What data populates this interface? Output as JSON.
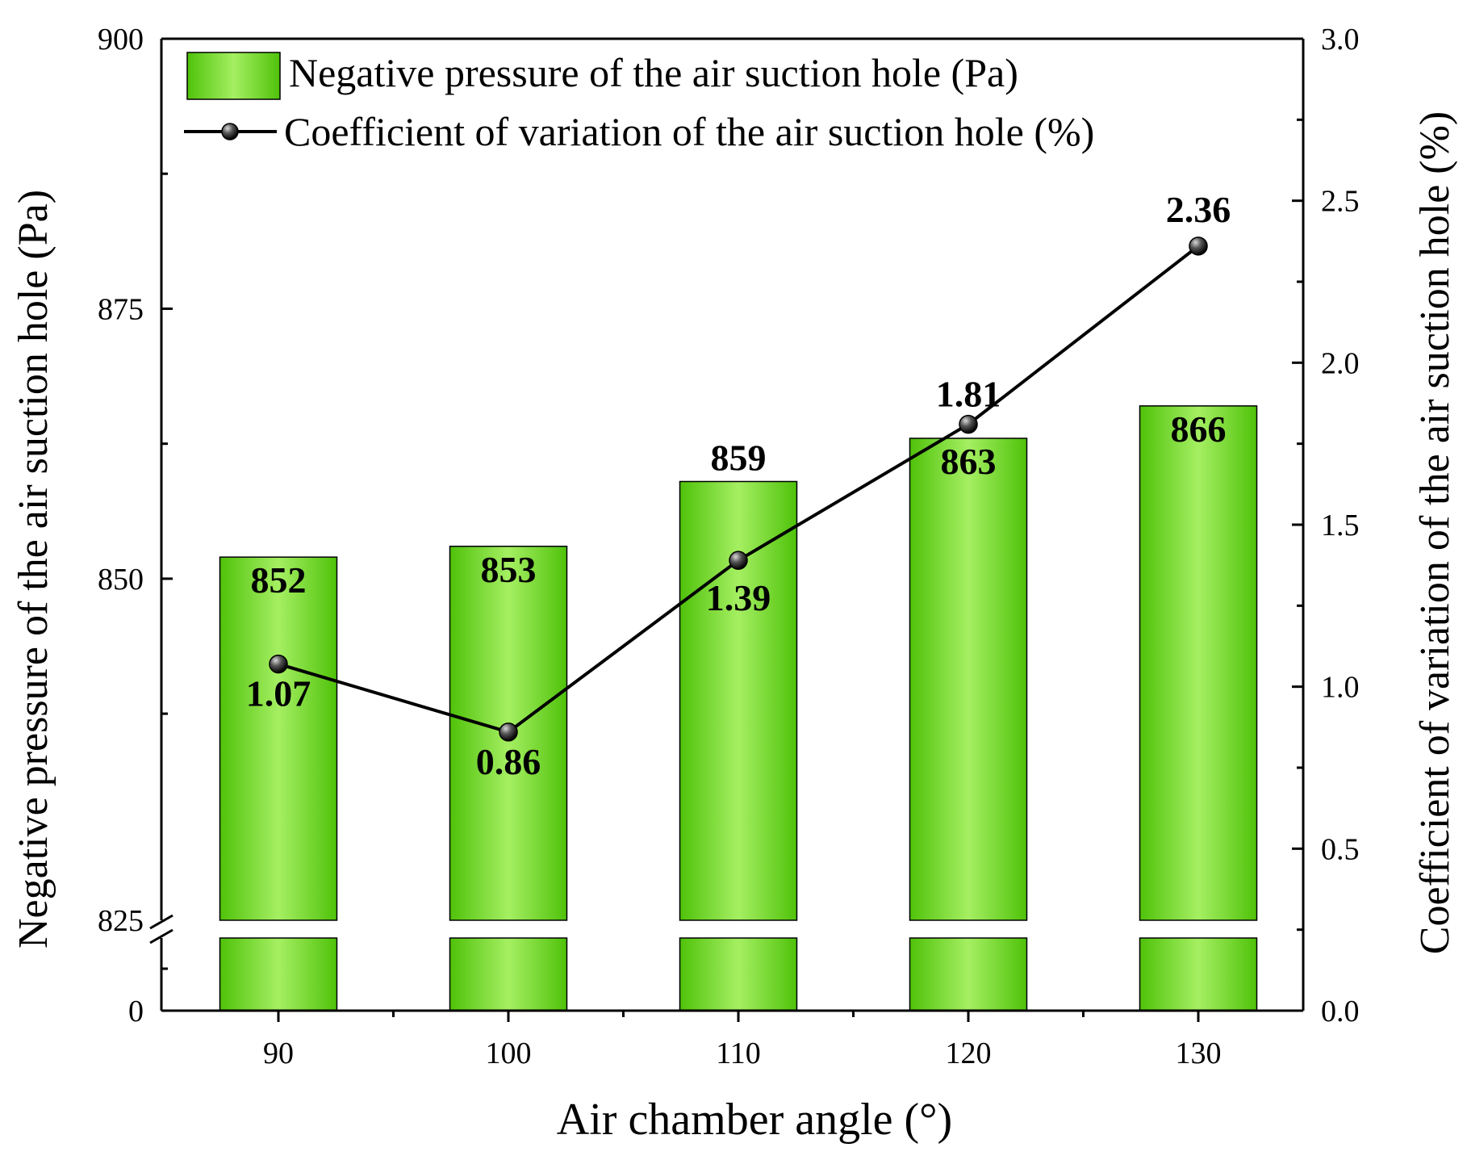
{
  "chart_data": {
    "type": "bar+line",
    "xlabel": "Air chamber angle (°)",
    "categories": [
      "90",
      "100",
      "110",
      "120",
      "130"
    ],
    "series": [
      {
        "name": "Negative pressure of the air suction hole (Pa)",
        "type": "bar",
        "axis": "left",
        "values": [
          852,
          853,
          859,
          863,
          866
        ],
        "labels": [
          "852",
          "853",
          "859",
          "863",
          "866"
        ],
        "color": "#5ccf14"
      },
      {
        "name": "Coefficient of variation of the air suction hole (%)",
        "type": "line",
        "axis": "right",
        "values": [
          1.07,
          0.86,
          1.39,
          1.81,
          2.36
        ],
        "labels": [
          "1.07",
          "0.86",
          "1.39",
          "1.81",
          "2.36"
        ],
        "color": "#000000"
      }
    ],
    "y_left": {
      "label": "Negative pressure of the air suction hole (Pa)",
      "broken": true,
      "lower_segment": [
        0,
        10
      ],
      "upper_segment": [
        825,
        900
      ],
      "tick_labels": [
        "0",
        "825",
        "850",
        "875",
        "900"
      ]
    },
    "y_right": {
      "label": "Coefficient of variation of the air suction hole (%)",
      "range": [
        0,
        3.0
      ],
      "tick_labels": [
        "0.0",
        "0.5",
        "1.0",
        "1.5",
        "2.0",
        "2.5",
        "3.0"
      ]
    },
    "legend_position": "top-left"
  }
}
